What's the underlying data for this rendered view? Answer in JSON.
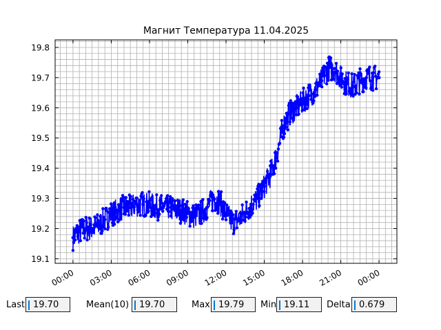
{
  "chart_data": {
    "type": "line",
    "title": "Магнит Температура 11.04.2025",
    "xlabel": "",
    "ylabel": "",
    "x_tick_labels": [
      "00:00",
      "03:00",
      "06:00",
      "09:00",
      "12:00",
      "15:00",
      "18:00",
      "21:00",
      "00:00"
    ],
    "x_tick_hours": [
      0,
      3,
      6,
      9,
      12,
      15,
      18,
      21,
      24
    ],
    "xlim_hours": [
      -1.4,
      25.4
    ],
    "y_tick_labels": [
      "19.1",
      "19.2",
      "19.3",
      "19.4",
      "19.5",
      "19.6",
      "19.7",
      "19.8"
    ],
    "y_ticks": [
      19.1,
      19.2,
      19.3,
      19.4,
      19.5,
      19.6,
      19.7,
      19.8
    ],
    "ylim": [
      19.085,
      19.825
    ],
    "grid": true,
    "series_color": "#0000ff",
    "series": [
      {
        "x_hours": [
          0.0,
          0.5,
          1.0,
          1.5,
          2.0,
          2.5,
          3.0,
          3.5,
          4.0,
          4.5,
          5.0,
          5.5,
          6.0,
          6.5,
          7.0,
          7.5,
          8.0,
          8.5,
          9.0,
          9.5,
          10.0,
          10.5,
          11.0,
          11.5,
          12.0,
          12.5,
          13.0,
          13.5,
          14.0,
          14.5,
          15.0,
          15.5,
          16.0,
          16.5,
          17.0,
          17.5,
          18.0,
          18.5,
          19.0,
          19.5,
          20.0,
          20.5,
          21.0,
          21.5,
          22.0,
          22.5,
          23.0,
          23.5,
          24.0
        ],
        "values": [
          19.17,
          19.19,
          19.2,
          19.2,
          19.21,
          19.23,
          19.25,
          19.26,
          19.27,
          19.27,
          19.28,
          19.28,
          19.28,
          19.27,
          19.27,
          19.27,
          19.26,
          19.26,
          19.25,
          19.24,
          19.25,
          19.27,
          19.3,
          19.29,
          19.25,
          19.22,
          19.23,
          19.25,
          19.28,
          19.3,
          19.34,
          19.38,
          19.45,
          19.54,
          19.58,
          19.6,
          19.62,
          19.64,
          19.66,
          19.69,
          19.73,
          19.73,
          19.7,
          19.68,
          19.67,
          19.69,
          19.7,
          19.7,
          19.7
        ]
      }
    ]
  },
  "stats": {
    "last": {
      "label": "Last",
      "value": "19.70"
    },
    "mean": {
      "label": "Mean(10)",
      "value": "19.70"
    },
    "max": {
      "label": "Max",
      "value": "19.79"
    },
    "min": {
      "label": "Min",
      "value": "19.11"
    },
    "delta": {
      "label": "Delta",
      "value": "0.679"
    }
  }
}
